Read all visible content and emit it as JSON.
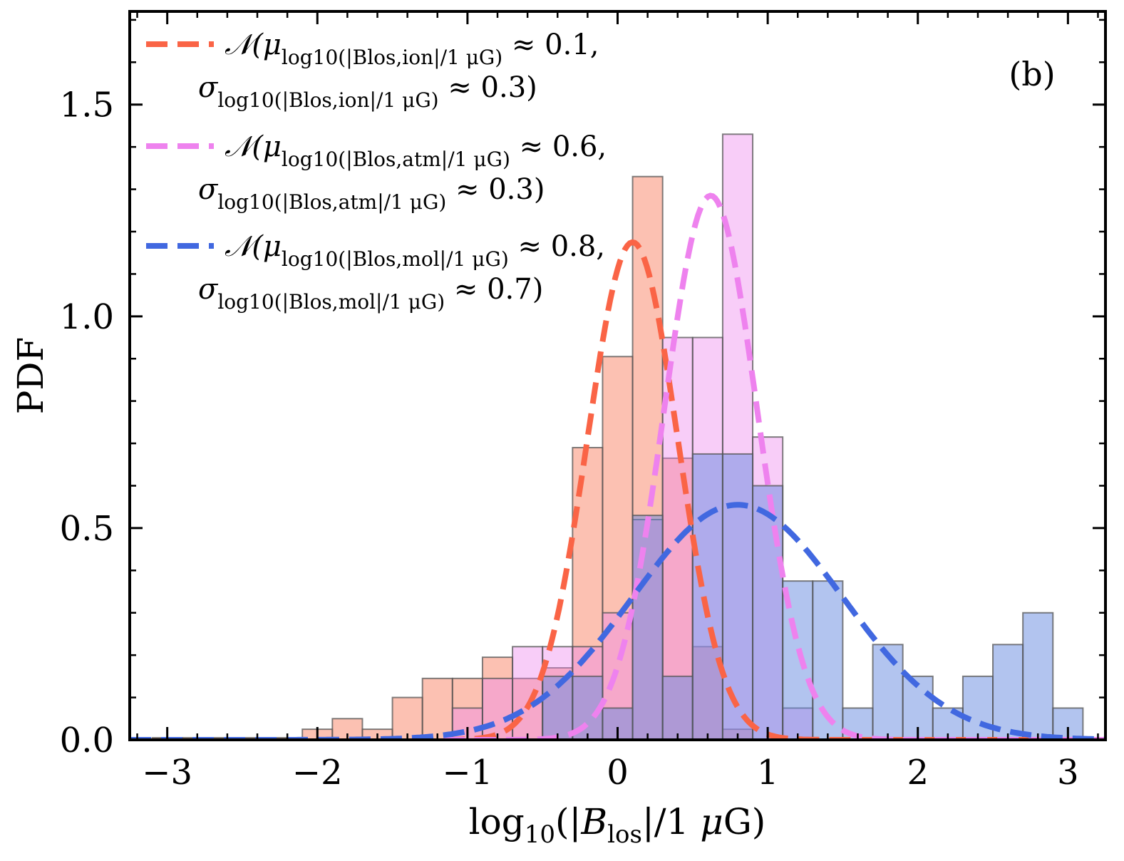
{
  "chart_data": {
    "type": "bar",
    "panel_label": "(b)",
    "xlabel": "log10(|Blos|/1 μG)",
    "ylabel": "PDF",
    "xlim": [
      -3.25,
      3.25
    ],
    "ylim": [
      0,
      1.72
    ],
    "x_ticks": [
      -3,
      -2,
      -1,
      0,
      1,
      2,
      3
    ],
    "x_tick_labels": [
      "−3",
      "−2",
      "−1",
      "0",
      "1",
      "2",
      "3"
    ],
    "y_ticks": [
      0.0,
      0.5,
      1.0,
      1.5
    ],
    "y_tick_labels": [
      "0.0",
      "0.5",
      "1.0",
      "1.5"
    ],
    "bin_width": 0.2,
    "histograms": [
      {
        "name": "ion",
        "color": "#fa8466",
        "edge": "#555555",
        "opacity": 0.5,
        "bins": [
          {
            "x0": -3.1,
            "v": 0.005
          },
          {
            "x0": -2.9,
            "v": 0.005
          },
          {
            "x0": -2.7,
            "v": 0.005
          },
          {
            "x0": -2.5,
            "v": 0.005
          },
          {
            "x0": -2.3,
            "v": 0.005
          },
          {
            "x0": -2.1,
            "v": 0.025
          },
          {
            "x0": -1.9,
            "v": 0.05
          },
          {
            "x0": -1.7,
            "v": 0.025
          },
          {
            "x0": -1.5,
            "v": 0.1
          },
          {
            "x0": -1.3,
            "v": 0.145
          },
          {
            "x0": -1.1,
            "v": 0.145
          },
          {
            "x0": -0.9,
            "v": 0.195
          },
          {
            "x0": -0.7,
            "v": 0.145
          },
          {
            "x0": -0.5,
            "v": 0.17
          },
          {
            "x0": -0.3,
            "v": 0.69
          },
          {
            "x0": -0.1,
            "v": 0.905
          },
          {
            "x0": 0.1,
            "v": 1.33
          },
          {
            "x0": 0.3,
            "v": 0.665
          },
          {
            "x0": 0.5,
            "v": 0.22
          },
          {
            "x0": 0.7,
            "v": 0.025
          }
        ]
      },
      {
        "name": "atm",
        "color": "#ee82ee",
        "edge": "#555555",
        "opacity": 0.4,
        "bins": [
          {
            "x0": -1.1,
            "v": 0.075
          },
          {
            "x0": -0.9,
            "v": 0.145
          },
          {
            "x0": -0.7,
            "v": 0.22
          },
          {
            "x0": -0.5,
            "v": 0.22
          },
          {
            "x0": -0.3,
            "v": 0.22
          },
          {
            "x0": -0.1,
            "v": 0.3
          },
          {
            "x0": 0.1,
            "v": 0.52
          },
          {
            "x0": 0.3,
            "v": 0.95
          },
          {
            "x0": 0.5,
            "v": 0.95
          },
          {
            "x0": 0.7,
            "v": 1.43
          },
          {
            "x0": 0.9,
            "v": 0.715
          },
          {
            "x0": 1.1,
            "v": 0.075
          }
        ]
      },
      {
        "name": "mol",
        "color": "#6689e0",
        "edge": "#555555",
        "opacity": 0.5,
        "bins": [
          {
            "x0": -0.5,
            "v": 0.15
          },
          {
            "x0": -0.3,
            "v": 0.15
          },
          {
            "x0": -0.1,
            "v": 0.075
          },
          {
            "x0": 0.1,
            "v": 0.53
          },
          {
            "x0": 0.3,
            "v": 0.15
          },
          {
            "x0": 0.5,
            "v": 0.675
          },
          {
            "x0": 0.7,
            "v": 0.675
          },
          {
            "x0": 0.9,
            "v": 0.6
          },
          {
            "x0": 1.1,
            "v": 0.375
          },
          {
            "x0": 1.3,
            "v": 0.375
          },
          {
            "x0": 1.5,
            "v": 0.075
          },
          {
            "x0": 1.7,
            "v": 0.225
          },
          {
            "x0": 1.9,
            "v": 0.15
          },
          {
            "x0": 2.1,
            "v": 0.075
          },
          {
            "x0": 2.3,
            "v": 0.15
          },
          {
            "x0": 2.5,
            "v": 0.225
          },
          {
            "x0": 2.7,
            "v": 0.3
          },
          {
            "x0": 2.9,
            "v": 0.075
          }
        ]
      }
    ],
    "fits": [
      {
        "name": "ion",
        "color": "#fa6446",
        "mu": 0.1,
        "sigma": 0.3,
        "peak": 1.175,
        "legend_line1": "𝒩(μ",
        "legend_sub1": "log10(|Blos,ion|/1 μG)",
        "legend_tail1": " ≈ 0.1,",
        "legend_line2": "σ",
        "legend_sub2": "log10(|Blos,ion|/1 μG)",
        "legend_tail2": " ≈ 0.3)"
      },
      {
        "name": "atm",
        "color": "#ee82ee",
        "mu": 0.62,
        "sigma": 0.31,
        "peak": 1.285,
        "legend_line1": "𝒩(μ",
        "legend_sub1": "log10(|Blos,atm|/1 μG)",
        "legend_tail1": " ≈ 0.6,",
        "legend_line2": "σ",
        "legend_sub2": "log10(|Blos,atm|/1 μG)",
        "legend_tail2": " ≈ 0.3)"
      },
      {
        "name": "mol",
        "color": "#4168e0",
        "mu": 0.8,
        "sigma": 0.7,
        "peak": 0.555,
        "legend_line1": "𝒩(μ",
        "legend_sub1": "log10(|Blos,mol|/1 μG)",
        "legend_tail1": " ≈ 0.8,",
        "legend_line2": "σ",
        "legend_sub2": "log10(|Blos,mol|/1 μG)",
        "legend_tail2": " ≈ 0.7)"
      }
    ]
  }
}
